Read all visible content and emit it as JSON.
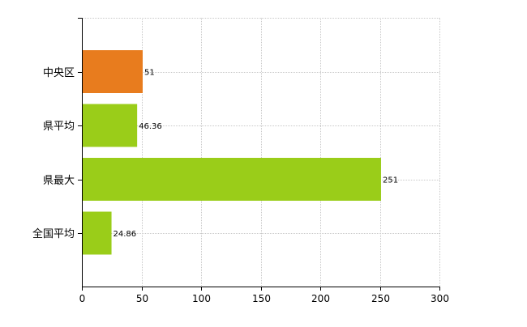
{
  "chart_data": {
    "type": "bar",
    "orientation": "horizontal",
    "categories": [
      "中央区",
      "県平均",
      "県最大",
      "全国平均"
    ],
    "values": [
      51,
      46.36,
      251,
      24.86
    ],
    "value_labels": [
      "51",
      "46.36",
      "251",
      "24.86"
    ],
    "bar_colors": [
      "#e87c1e",
      "#9acd19",
      "#9acd19",
      "#9acd19"
    ],
    "xlim": [
      0,
      300
    ],
    "x_ticks": [
      0,
      50,
      100,
      150,
      200,
      250,
      300
    ],
    "x_tick_labels": [
      "0",
      "50",
      "100",
      "150",
      "200",
      "250",
      "300"
    ],
    "grid": true,
    "legend": "none"
  }
}
